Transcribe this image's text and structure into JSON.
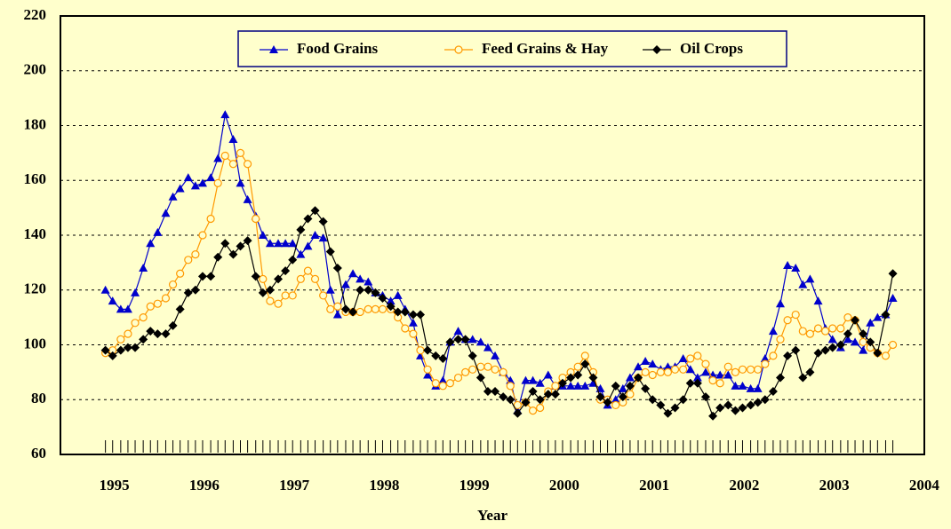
{
  "chart_data": {
    "type": "line",
    "x_label": "Year",
    "x": [
      1995,
      1995.08,
      1995.17,
      1995.25,
      1995.33,
      1995.42,
      1995.5,
      1995.58,
      1995.67,
      1995.75,
      1995.83,
      1995.92,
      1996,
      1996.08,
      1996.17,
      1996.25,
      1996.33,
      1996.42,
      1996.5,
      1996.58,
      1996.67,
      1996.75,
      1996.83,
      1996.92,
      1997,
      1997.08,
      1997.17,
      1997.25,
      1997.33,
      1997.42,
      1997.5,
      1997.58,
      1997.67,
      1997.75,
      1997.83,
      1997.92,
      1998,
      1998.08,
      1998.17,
      1998.25,
      1998.33,
      1998.42,
      1998.5,
      1998.58,
      1998.67,
      1998.75,
      1998.83,
      1998.92,
      1999,
      1999.08,
      1999.17,
      1999.25,
      1999.33,
      1999.42,
      1999.5,
      1999.58,
      1999.67,
      1999.75,
      1999.83,
      1999.92,
      2000,
      2000.08,
      2000.17,
      2000.25,
      2000.33,
      2000.42,
      2000.5,
      2000.58,
      2000.67,
      2000.75,
      2000.83,
      2000.92,
      2001,
      2001.08,
      2001.17,
      2001.25,
      2001.33,
      2001.42,
      2001.5,
      2001.58,
      2001.67,
      2001.75,
      2001.83,
      2001.92,
      2002,
      2002.08,
      2002.17,
      2002.25,
      2002.33,
      2002.42,
      2002.5,
      2002.58,
      2002.67,
      2002.75,
      2002.83,
      2002.92,
      2003,
      2003.08,
      2003.17,
      2003.25,
      2003.33,
      2003.42,
      2003.5,
      2003.58,
      2003.67,
      2003.75
    ],
    "series": [
      {
        "name": "Food Grains",
        "color": "#0000cc",
        "marker": "triangle",
        "values": [
          120,
          116,
          113,
          113,
          119,
          128,
          137,
          141,
          148,
          154,
          157,
          161,
          158,
          159,
          161,
          168,
          184,
          175,
          159,
          153,
          147,
          140,
          137,
          137,
          137,
          137,
          133,
          136,
          140,
          139,
          120,
          111,
          122,
          126,
          124,
          123,
          119,
          118,
          116,
          118,
          113,
          108,
          96,
          89,
          85,
          87,
          101,
          105,
          102,
          102,
          101,
          99,
          96,
          90,
          87,
          76,
          87,
          87,
          86,
          89,
          85,
          85,
          85,
          85,
          85,
          86,
          84,
          78,
          80,
          84,
          88,
          92,
          94,
          93,
          91,
          92,
          92,
          95,
          91,
          88,
          90,
          89,
          89,
          89,
          85,
          85,
          84,
          84,
          95,
          105,
          115,
          129,
          128,
          122,
          124,
          116,
          106,
          102,
          99,
          102,
          101,
          98,
          108,
          110,
          111,
          117
        ]
      },
      {
        "name": "Feed Grains & Hay",
        "color": "#ff9900",
        "marker": "circle",
        "values": [
          97,
          98,
          102,
          104,
          108,
          110,
          114,
          115,
          117,
          122,
          126,
          131,
          133,
          140,
          146,
          159,
          169,
          166,
          170,
          166,
          146,
          124,
          116,
          115,
          118,
          118,
          124,
          127,
          124,
          118,
          113,
          114,
          112,
          112,
          112,
          113,
          113,
          113,
          113,
          110,
          106,
          104,
          98,
          91,
          86,
          85,
          86,
          88,
          90,
          91,
          92,
          92,
          91,
          90,
          85,
          78,
          79,
          76,
          77,
          83,
          85,
          88,
          90,
          92,
          96,
          90,
          80,
          80,
          78,
          79,
          82,
          88,
          90,
          89,
          90,
          90,
          91,
          91,
          95,
          96,
          93,
          87,
          86,
          92,
          90,
          91,
          91,
          91,
          93,
          96,
          102,
          109,
          111,
          105,
          104,
          106,
          105,
          106,
          106,
          110,
          109,
          101,
          99,
          97,
          96,
          100
        ]
      },
      {
        "name": "Oil Crops",
        "color": "#000000",
        "marker": "diamond",
        "values": [
          98,
          96,
          98,
          99,
          99,
          102,
          105,
          104,
          104,
          107,
          113,
          119,
          120,
          125,
          125,
          132,
          137,
          133,
          136,
          138,
          125,
          119,
          120,
          124,
          127,
          131,
          142,
          146,
          149,
          145,
          134,
          128,
          113,
          112,
          120,
          120,
          119,
          117,
          114,
          112,
          112,
          111,
          111,
          98,
          96,
          95,
          101,
          102,
          102,
          96,
          88,
          83,
          83,
          81,
          80,
          75,
          79,
          83,
          80,
          82,
          82,
          86,
          88,
          89,
          93,
          88,
          81,
          79,
          85,
          81,
          85,
          88,
          84,
          80,
          78,
          75,
          77,
          80,
          86,
          86,
          81,
          74,
          77,
          78,
          76,
          77,
          78,
          79,
          80,
          83,
          88,
          96,
          98,
          88,
          90,
          97,
          98,
          99,
          100,
          104,
          109,
          104,
          101,
          97,
          111,
          126
        ]
      }
    ],
    "xlim": [
      1994.5,
      2004.1
    ],
    "xticks": [
      1995,
      1996,
      1997,
      1998,
      1999,
      2000,
      2001,
      2002,
      2003,
      2004
    ],
    "ylim": [
      60,
      220
    ],
    "yticks": [
      60,
      80,
      100,
      120,
      140,
      160,
      180,
      200,
      220
    ],
    "grid": true,
    "legend": "top"
  }
}
